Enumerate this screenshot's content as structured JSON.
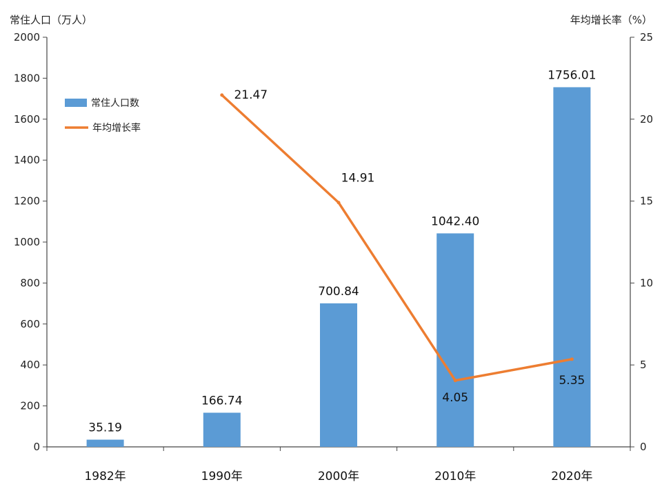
{
  "chart_data": {
    "type": "bar",
    "left_axis_title": "常住人口（万人）",
    "right_axis_title": "年均增长率（%）",
    "categories": [
      "1982年",
      "1990年",
      "2000年",
      "2010年",
      "2020年"
    ],
    "ylim_left": [
      0,
      2000
    ],
    "yticks_left": [
      "0",
      "200",
      "400",
      "600",
      "800",
      "1000",
      "1200",
      "1400",
      "1600",
      "1800",
      "2000"
    ],
    "ylim_right": [
      0,
      25
    ],
    "yticks_right": [
      "0",
      "5",
      "10",
      "15",
      "20",
      "25"
    ],
    "grid": false,
    "legend_position": "top-left",
    "series": [
      {
        "name": "常住人口数",
        "type": "bar",
        "axis": "left",
        "color": "#5b9bd5",
        "values": [
          35.19,
          166.74,
          700.84,
          1042.4,
          1756.01
        ],
        "labels": [
          "35.19",
          "166.74",
          "700.84",
          "1042.40",
          "1756.01"
        ]
      },
      {
        "name": "年均增长率",
        "type": "line",
        "axis": "right",
        "color": "#ed7d31",
        "x": [
          "1990年",
          "2000年",
          "2010年",
          "2020年"
        ],
        "values": [
          21.47,
          14.91,
          4.05,
          5.35
        ],
        "labels": [
          "21.47",
          "14.91",
          "4.05",
          "5.35"
        ]
      }
    ]
  }
}
